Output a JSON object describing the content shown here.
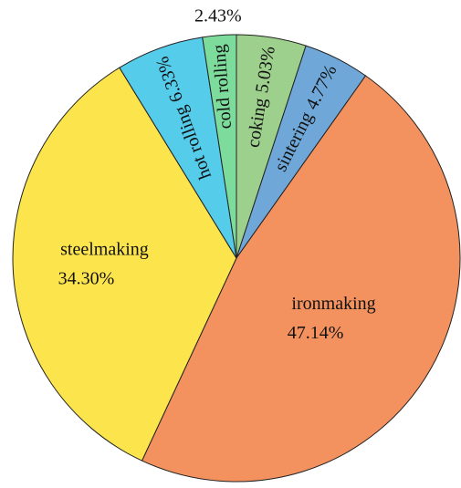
{
  "chart_data": {
    "type": "pie",
    "categories": [
      "coking",
      "sintering",
      "ironmaking",
      "steelmaking",
      "hot rolling",
      "cold rolling"
    ],
    "values": [
      5.03,
      4.77,
      47.14,
      34.3,
      6.33,
      2.43
    ],
    "value_labels": [
      "5.03%",
      "4.77%",
      "47.14%",
      "34.30%",
      "6.33%",
      "2.43%"
    ],
    "colors": [
      "#9ed08d",
      "#6fa8d8",
      "#f4925f",
      "#fce44d",
      "#55ccea",
      "#7ddc9c"
    ]
  }
}
